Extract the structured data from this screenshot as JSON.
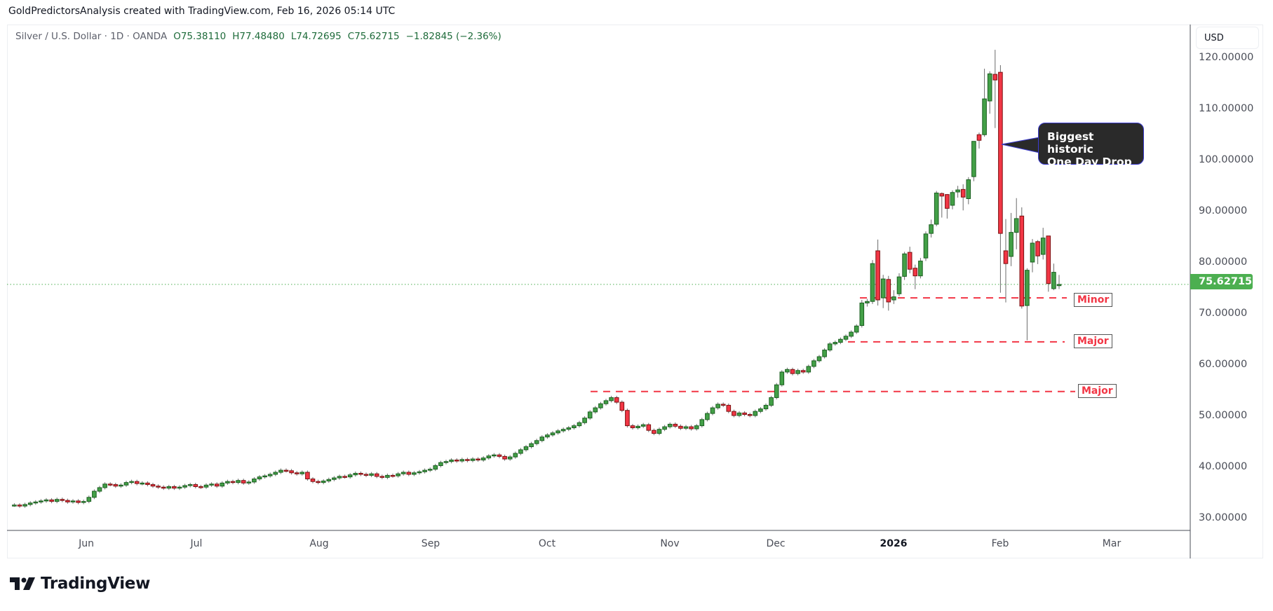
{
  "credit": "GoldPredictorsAnalysis created with TradingView.com, Feb 16, 2026 05:14 UTC",
  "legend": {
    "symbol": "Silver / U.S. Dollar · 1D · OANDA",
    "open": "O75.38110",
    "high": "H77.48480",
    "low": "L74.72695",
    "close": "C75.62715",
    "change": "−1.82845 (−2.36%)"
  },
  "currency": "USD",
  "last_price_label": "75.62715",
  "brand": "TradingView",
  "colors": {
    "up": "#43a047",
    "down": "#f23645",
    "up_border": "#1b5e20",
    "down_border": "#7a1010",
    "price_line": "#4caf50",
    "levels": "#f23645"
  },
  "chart_data": {
    "type": "candlestick",
    "title": "Silver / U.S. Dollar · 1D · OANDA",
    "ylim": [
      30,
      120
    ],
    "yticks": [
      "120.00000",
      "110.00000",
      "100.00000",
      "90.00000",
      "80.00000",
      "70.00000",
      "60.00000",
      "50.00000",
      "40.00000",
      "30.00000"
    ],
    "xticks": [
      "Jun",
      "Jul",
      "Aug",
      "Sep",
      "Oct",
      "Nov",
      "Dec",
      "2026",
      "Feb",
      "Mar"
    ],
    "last_price": 75.62715,
    "bars": [
      32.5,
      32.3,
      32.6,
      32.9,
      33.1,
      33.3,
      33.5,
      33.2,
      33.6,
      33.4,
      33.1,
      33.3,
      33.0,
      33.2,
      34.0,
      35.2,
      35.9,
      36.6,
      36.5,
      36.2,
      36.4,
      36.9,
      37.1,
      36.7,
      36.8,
      36.5,
      36.2,
      36.0,
      35.8,
      36.1,
      35.8,
      36.0,
      36.3,
      36.5,
      36.1,
      36.0,
      36.4,
      36.6,
      36.2,
      36.8,
      37.1,
      36.9,
      37.3,
      36.8,
      37.0,
      37.6,
      38.0,
      38.2,
      38.5,
      38.9,
      39.3,
      39.2,
      38.8,
      38.6,
      38.9,
      37.6,
      37.1,
      36.9,
      37.2,
      37.5,
      37.8,
      38.1,
      38.0,
      38.4,
      38.7,
      38.5,
      38.3,
      38.6,
      38.1,
      37.9,
      38.3,
      38.2,
      38.6,
      38.9,
      38.5,
      38.8,
      39.0,
      39.3,
      39.5,
      40.2,
      40.8,
      41.0,
      41.3,
      41.1,
      41.4,
      41.2,
      41.5,
      41.3,
      41.7,
      42.1,
      42.3,
      42.0,
      41.5,
      41.9,
      42.6,
      43.3,
      43.9,
      44.5,
      45.1,
      45.8,
      46.2,
      46.6,
      47.0,
      47.3,
      47.6,
      48.0,
      48.6,
      49.5,
      50.7,
      51.5,
      52.3,
      52.9,
      53.5,
      52.6,
      51.0,
      48.0,
      47.6,
      47.9,
      48.2,
      47.1,
      46.5,
      47.3,
      47.8,
      48.3,
      47.9,
      47.5,
      47.8,
      47.4,
      48.0,
      49.2,
      50.4,
      51.5,
      52.2,
      52.0,
      50.8,
      50.0,
      50.5,
      50.2,
      50.0,
      50.8,
      51.3,
      52.0,
      53.5,
      56.0,
      58.5,
      59.0,
      58.2,
      58.8,
      58.5,
      59.6,
      60.7,
      61.5,
      62.8,
      64.0,
      64.3,
      64.9,
      65.5,
      66.3,
      67.5,
      [
        67.6,
        72.6,
        67.2,
        72.0
      ],
      [
        72.0,
        72.8,
        71.3,
        72.3
      ],
      [
        72.3,
        80.4,
        71.8,
        79.7
      ],
      [
        82.2,
        84.4,
        71.5,
        72.6
      ],
      [
        73.0,
        77.5,
        71.0,
        76.7
      ],
      [
        76.6,
        77.3,
        70.5,
        72.2
      ],
      [
        72.6,
        74.5,
        71.8,
        73.2
      ],
      [
        73.8,
        77.8,
        73.3,
        77.1
      ],
      [
        77.2,
        82.0,
        76.5,
        81.6
      ],
      [
        81.9,
        83.0,
        77.8,
        78.6
      ],
      [
        78.8,
        79.5,
        74.7,
        77.3
      ],
      [
        77.3,
        80.8,
        76.8,
        80.2
      ],
      [
        80.8,
        86.0,
        80.2,
        85.5
      ],
      [
        85.6,
        88.3,
        84.8,
        87.3
      ],
      [
        87.4,
        93.9,
        87.0,
        93.5
      ],
      [
        93.4,
        93.6,
        88.7,
        92.9
      ],
      [
        93.2,
        93.3,
        88.5,
        90.5
      ],
      [
        91.1,
        94.0,
        90.3,
        93.6
      ],
      [
        93.7,
        94.9,
        92.6,
        94.1
      ],
      [
        94.2,
        95.2,
        90.1,
        92.7
      ],
      [
        92.4,
        96.6,
        91.3,
        96.1
      ],
      [
        96.7,
        103.6,
        95.8,
        103.6
      ],
      [
        104.9,
        105.3,
        102.2,
        103.8
      ],
      [
        104.9,
        117.8,
        104.5,
        111.9
      ],
      [
        111.5,
        117.3,
        109.0,
        116.8
      ],
      [
        116.7,
        121.5,
        106.2,
        115.6
      ],
      [
        117.1,
        118.5,
        74.0,
        85.6
      ],
      [
        82.2,
        88.4,
        72.1,
        79.7
      ],
      [
        81.1,
        89.6,
        79.2,
        85.8
      ],
      [
        85.8,
        92.5,
        82.5,
        88.5
      ],
      [
        89.0,
        90.7,
        70.9,
        71.4
      ],
      [
        71.5,
        78.8,
        64.7,
        78.4
      ],
      [
        80.0,
        84.5,
        78.0,
        83.7
      ],
      [
        84.0,
        84.3,
        79.6,
        81.2
      ],
      [
        81.5,
        86.7,
        80.5,
        84.7
      ],
      [
        85.1,
        85.1,
        74.2,
        75.8
      ],
      [
        74.8,
        79.7,
        74.5,
        78.0
      ],
      [
        75.3811,
        77.4848,
        74.72695,
        75.62715
      ]
    ],
    "levels": [
      {
        "label": "Minor",
        "price": 73.0
      },
      {
        "label": "Major",
        "price": 64.4
      },
      {
        "label": "Major",
        "price": 54.7
      }
    ],
    "annotation": {
      "line1": "Biggest historic",
      "line2": "One Day Drop"
    }
  }
}
